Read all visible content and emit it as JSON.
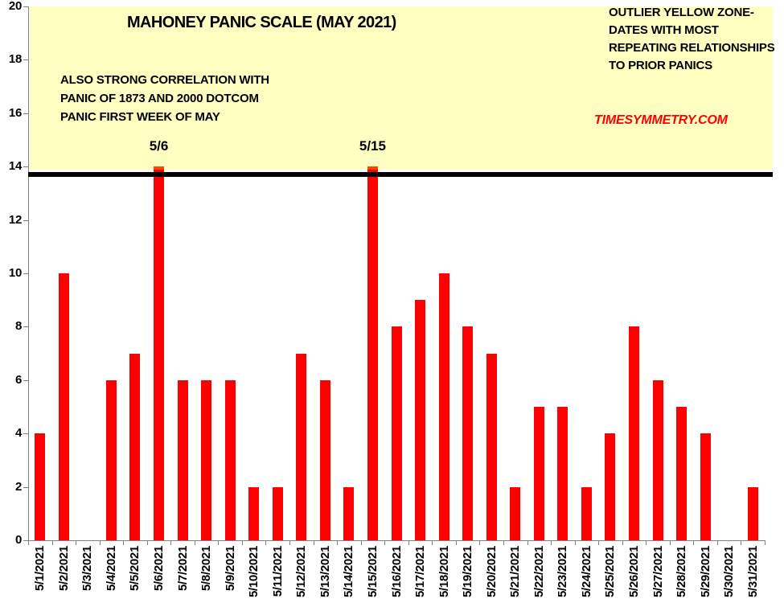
{
  "title": "MAHONEY PANIC SCALE (MAY 2021)",
  "annotations": {
    "left_note": [
      "ALSO STRONG CORRELATION WITH",
      "PANIC OF 1873 AND 2000 DOTCOM",
      "PANIC FIRST WEEK OF MAY"
    ],
    "right_note": [
      "OUTLIER YELLOW ZONE-",
      "DATES WITH MOST",
      "REPEATING RELATIONSHIPS",
      "TO PRIOR PANICS"
    ],
    "watermark": "TIMESYMMETRY.COM",
    "watermark_color": "#FF0000",
    "peak_labels": [
      {
        "text": "5/6",
        "index": 5
      },
      {
        "text": "5/15",
        "index": 14
      }
    ]
  },
  "chart_data": {
    "type": "bar",
    "title": "MAHONEY PANIC SCALE (MAY 2021)",
    "categories": [
      "5/1/2021",
      "5/2/2021",
      "5/3/2021",
      "5/4/2021",
      "5/5/2021",
      "5/6/2021",
      "5/7/2021",
      "5/8/2021",
      "5/9/2021",
      "5/10/2021",
      "5/11/2021",
      "5/12/2021",
      "5/13/2021",
      "5/14/2021",
      "5/15/2021",
      "5/16/2021",
      "5/17/2021",
      "5/18/2021",
      "5/19/2021",
      "5/20/2021",
      "5/21/2021",
      "5/22/2021",
      "5/23/2021",
      "5/24/2021",
      "5/25/2021",
      "5/26/2021",
      "5/27/2021",
      "5/28/2021",
      "5/29/2021",
      "5/30/2021",
      "5/31/2021"
    ],
    "values": [
      4,
      10,
      0,
      6,
      7,
      14,
      6,
      6,
      6,
      2,
      2,
      7,
      6,
      2,
      14,
      8,
      9,
      10,
      8,
      7,
      2,
      5,
      5,
      2,
      4,
      8,
      6,
      5,
      4,
      0,
      2
    ],
    "xlabel": "",
    "ylabel": "",
    "ylim": [
      0,
      20
    ],
    "ytick_labels": [
      "0",
      "2",
      "4",
      "6",
      "8",
      "10",
      "12",
      "14",
      "16",
      "18",
      "20"
    ],
    "grid": false,
    "legend": null,
    "bar_color": "#FF0000",
    "bar_overlap_color": "#FF4500",
    "axis_color": "#808080",
    "threshold_line": {
      "value": 13.7,
      "thickness": 6,
      "color": "#000000"
    },
    "outlier_zone": {
      "from": 13.9,
      "to": 20,
      "color": "#FFFFC2"
    }
  }
}
